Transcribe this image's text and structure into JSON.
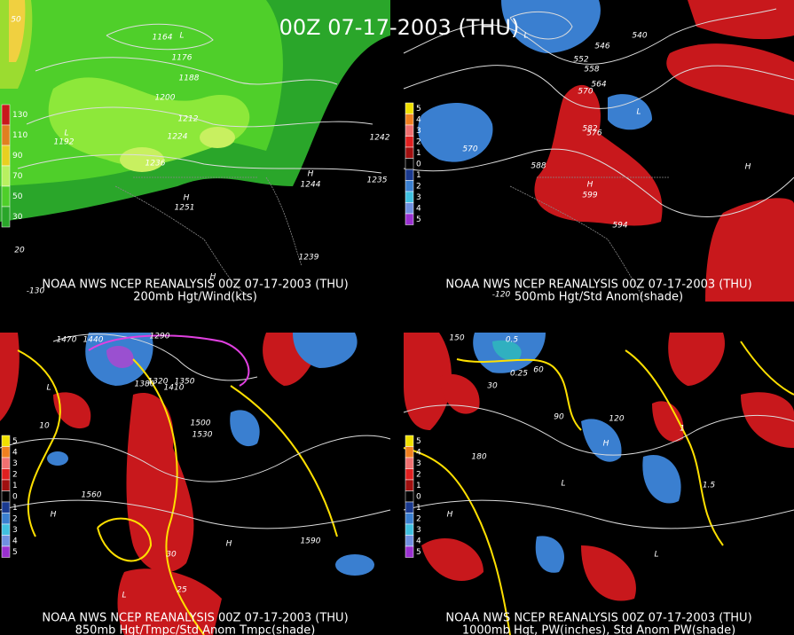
{
  "header": "00Z 07-17-2003 (THU)",
  "panels": [
    {
      "caption": "NOAA NWS NCEP REANALYSIS 00Z 07-17-2003 (THU)",
      "subtitle": "200mb Hgt/Wind(kts)",
      "legend": [
        "130",
        "110",
        "90",
        "70",
        "50",
        "30"
      ],
      "labels": [
        "50",
        "1164",
        "1176",
        "1188",
        "1200",
        "1212",
        "1224",
        "1236",
        "1192",
        "1251",
        "1244",
        "1242",
        "1235",
        "1239",
        "L",
        "L",
        "H",
        "H",
        "H",
        "20",
        "-130"
      ]
    },
    {
      "caption": "NOAA NWS NCEP REANALYSIS 00Z 07-17-2003 (THU)",
      "subtitle": "500mb Hgt/Std Anom(shade)",
      "legend": [
        "5",
        "4",
        "3",
        "2",
        "1",
        "0",
        "1",
        "2",
        "3",
        "4",
        "5"
      ],
      "labels": [
        "540",
        "546",
        "552",
        "558",
        "564",
        "570",
        "576",
        "582",
        "588",
        "594",
        "599",
        "570",
        "L",
        "L",
        "H",
        "H",
        "-120"
      ]
    },
    {
      "caption": "NOAA NWS NCEP REANALYSIS 00Z 07-17-2003 (THU)",
      "subtitle": "850mb Hgt/Tmpc/Std Anom Tmpc(shade)",
      "legend": [
        "5",
        "4",
        "3",
        "2",
        "1",
        "0",
        "1",
        "2",
        "3",
        "4",
        "5"
      ],
      "labels": [
        "1470",
        "1440",
        "1290",
        "1320",
        "1350",
        "1380",
        "1410",
        "1500",
        "1530",
        "1560",
        "1590",
        "10",
        "30",
        "25",
        "L",
        "L",
        "H",
        "H"
      ]
    },
    {
      "caption": "NOAA NWS NCEP REANALYSIS 00Z 07-17-2003 (THU)",
      "subtitle": "1000mb Hgt, PW(inches), Std Anom PW(shade)",
      "legend": [
        "5",
        "4",
        "3",
        "2",
        "1",
        "0",
        "1",
        "2",
        "3",
        "4",
        "5"
      ],
      "labels": [
        "150",
        "0.5",
        "0.25",
        "60",
        "30",
        "90",
        "120",
        "180",
        "1.5",
        "1",
        "L",
        "H",
        "H",
        "L"
      ]
    }
  ]
}
